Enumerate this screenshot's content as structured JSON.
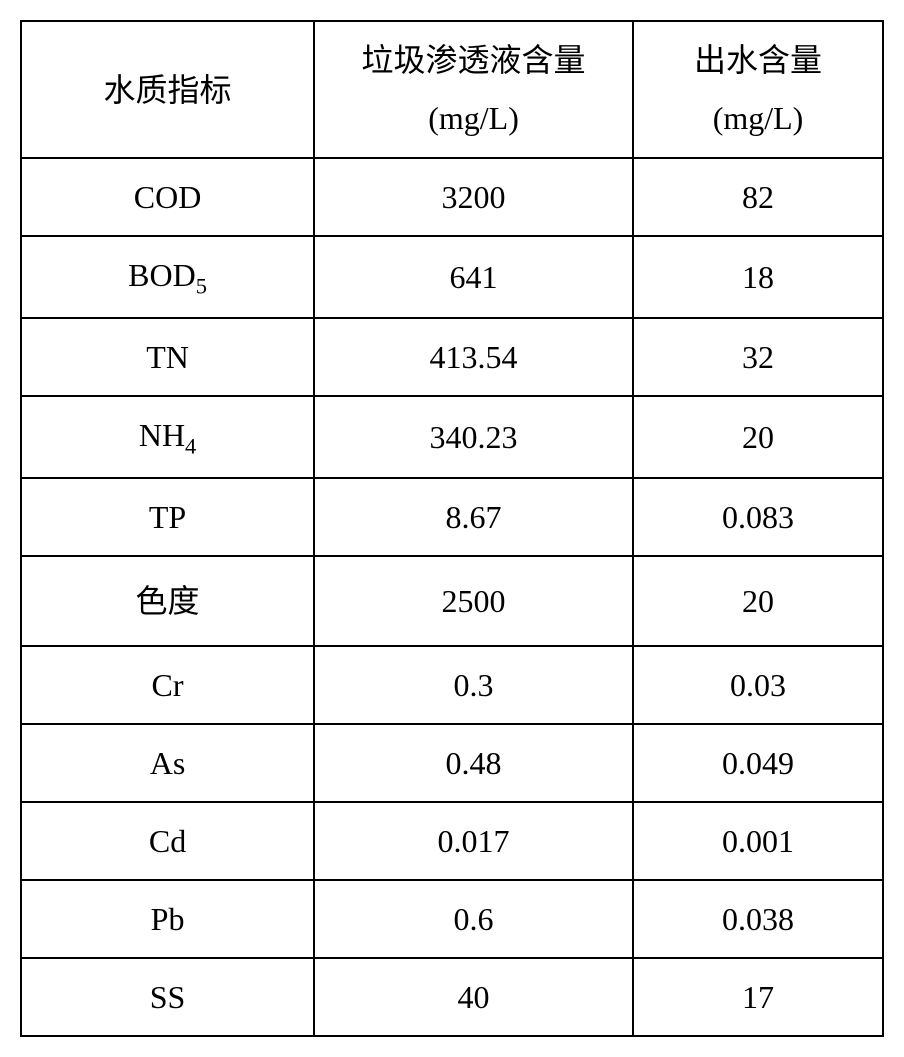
{
  "table": {
    "type": "table",
    "columns": [
      {
        "label": "水质指标",
        "width": "34%",
        "align": "center"
      },
      {
        "label_line1": "垃圾渗透液含量",
        "label_line2": "(mg/L)",
        "width": "37%",
        "align": "center"
      },
      {
        "label_line1": "出水含量",
        "label_line2": "(mg/L)",
        "width": "29%",
        "align": "center"
      }
    ],
    "rows": [
      {
        "indicator": "COD",
        "leachate": "3200",
        "effluent": "82"
      },
      {
        "indicator": "BOD",
        "indicator_sub": "5",
        "leachate": "641",
        "effluent": "18"
      },
      {
        "indicator": "TN",
        "leachate": "413.54",
        "effluent": "32"
      },
      {
        "indicator": "NH",
        "indicator_sub": "4",
        "leachate": "340.23",
        "effluent": "20"
      },
      {
        "indicator": "TP",
        "leachate": "8.67",
        "effluent": "0.083"
      },
      {
        "indicator": "色度",
        "leachate": "2500",
        "effluent": "20",
        "tall": true
      },
      {
        "indicator": "Cr",
        "leachate": "0.3",
        "effluent": "0.03"
      },
      {
        "indicator": "As",
        "leachate": "0.48",
        "effluent": "0.049"
      },
      {
        "indicator": "Cd",
        "leachate": "0.017",
        "effluent": "0.001"
      },
      {
        "indicator": "Pb",
        "leachate": "0.6",
        "effluent": "0.038"
      },
      {
        "indicator": "SS",
        "leachate": "40",
        "effluent": "17"
      }
    ],
    "border_color": "#000000",
    "background_color": "#ffffff",
    "font_size": 32,
    "font_family": "Times New Roman, SimSun, serif"
  }
}
